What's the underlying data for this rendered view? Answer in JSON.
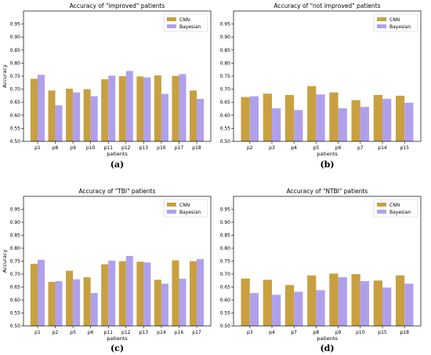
{
  "colors": {
    "cnn": "#c8a040",
    "bayesian": "#b0a0ec"
  },
  "chart_data": [
    {
      "type": "bar",
      "title": "Accuracy of \"improved\" patients",
      "caption": "(a)",
      "xlabel": "patients",
      "ylabel": "Accuracy",
      "ylim": [
        0.5,
        1.0
      ],
      "yticks": [
        "0.50",
        "0.55",
        "0.60",
        "0.65",
        "0.70",
        "0.75",
        "0.80",
        "0.85",
        "0.90",
        "0.95"
      ],
      "legend_position": "top-right",
      "categories": [
        "p1",
        "p8",
        "p9",
        "p10",
        "p11",
        "p12",
        "p13",
        "p16",
        "p17",
        "p18"
      ],
      "series": [
        {
          "name": "CNN",
          "values": [
            0.74,
            0.695,
            0.702,
            0.7,
            0.738,
            0.75,
            0.749,
            0.753,
            0.751,
            0.695
          ]
        },
        {
          "name": "Bayesian",
          "values": [
            0.755,
            0.638,
            0.688,
            0.673,
            0.752,
            0.77,
            0.745,
            0.682,
            0.758,
            0.663
          ]
        }
      ]
    },
    {
      "type": "bar",
      "title": "Accuracy of \"not improved\" patients",
      "caption": "(b)",
      "xlabel": "patients",
      "ylabel": "",
      "ylim": [
        0.5,
        1.0
      ],
      "yticks": [
        "0.50",
        "0.55",
        "0.60",
        "0.65",
        "0.70",
        "0.75",
        "0.80",
        "0.85",
        "0.90",
        "0.95"
      ],
      "legend_position": "top-right",
      "categories": [
        "p2",
        "p3",
        "p4",
        "p5",
        "p6",
        "p7",
        "p14",
        "p15"
      ],
      "series": [
        {
          "name": "CNN",
          "values": [
            0.67,
            0.683,
            0.678,
            0.712,
            0.688,
            0.658,
            0.678,
            0.675
          ]
        },
        {
          "name": "Bayesian",
          "values": [
            0.673,
            0.627,
            0.62,
            0.68,
            0.627,
            0.632,
            0.663,
            0.648
          ]
        }
      ]
    },
    {
      "type": "bar",
      "title": "Accuracy of \"TBI\" patients",
      "caption": "(c)",
      "xlabel": "patients",
      "ylabel": "Accuracy",
      "ylim": [
        0.5,
        1.0
      ],
      "yticks": [
        "0.50",
        "0.55",
        "0.60",
        "0.65",
        "0.70",
        "0.75",
        "0.80",
        "0.85",
        "0.90",
        "0.95"
      ],
      "legend_position": "top-right",
      "categories": [
        "p1",
        "p2",
        "p5",
        "p6",
        "p11",
        "p12",
        "p13",
        "p14",
        "p16",
        "p17"
      ],
      "series": [
        {
          "name": "CNN",
          "values": [
            0.74,
            0.67,
            0.713,
            0.688,
            0.738,
            0.75,
            0.748,
            0.678,
            0.753,
            0.75
          ]
        },
        {
          "name": "Bayesian",
          "values": [
            0.755,
            0.673,
            0.68,
            0.627,
            0.752,
            0.77,
            0.745,
            0.663,
            0.682,
            0.758
          ]
        }
      ]
    },
    {
      "type": "bar",
      "title": "Accuracy of \"NTBI\" patients",
      "caption": "(d)",
      "xlabel": "patients",
      "ylabel": "",
      "ylim": [
        0.5,
        1.0
      ],
      "yticks": [
        "0.50",
        "0.55",
        "0.60",
        "0.65",
        "0.70",
        "0.75",
        "0.80",
        "0.85",
        "0.90",
        "0.95"
      ],
      "legend_position": "top-right",
      "categories": [
        "p3",
        "p4",
        "p7",
        "p8",
        "p9",
        "p10",
        "p15",
        "p18"
      ],
      "series": [
        {
          "name": "CNN",
          "values": [
            0.683,
            0.678,
            0.658,
            0.695,
            0.702,
            0.7,
            0.675,
            0.695
          ]
        },
        {
          "name": "Bayesian",
          "values": [
            0.627,
            0.62,
            0.632,
            0.638,
            0.688,
            0.673,
            0.648,
            0.663
          ]
        }
      ]
    }
  ]
}
